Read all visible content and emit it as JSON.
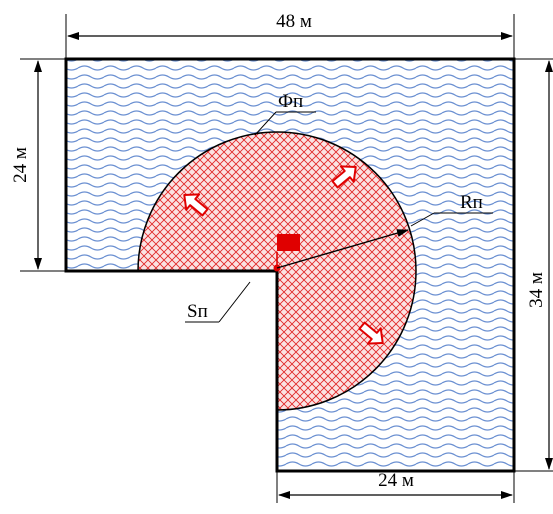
{
  "dimensions": {
    "top_width": "48 м",
    "left_height": "24 м",
    "right_height": "34 м",
    "bottom_width": "24 м"
  },
  "labels": {
    "fire_front": "Фп",
    "radius": "Rп",
    "area": "Sп"
  },
  "colors": {
    "water_wave": "#6a8fd1",
    "fire_hatch": "#e02a2a",
    "fire_fill": "#fbe3e3",
    "source": "#e00000",
    "outline": "#000000"
  },
  "icons": {
    "spread_arrows": "hollow-arrow-icon",
    "source_marker": "fire-source-flag-icon"
  }
}
